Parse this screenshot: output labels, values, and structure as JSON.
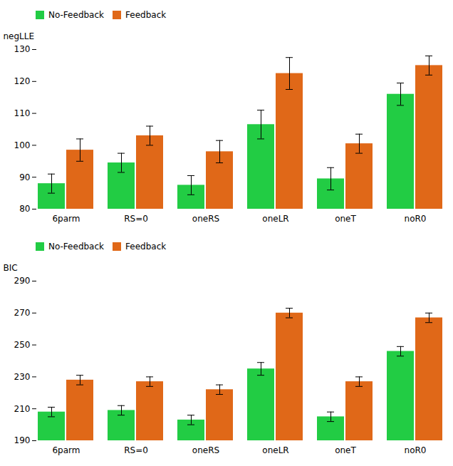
{
  "chart_data": [
    {
      "type": "bar",
      "ylabel": "negLLE",
      "categories": [
        "6parm",
        "RS=0",
        "oneRS",
        "oneLR",
        "oneT",
        "noR0"
      ],
      "series": [
        {
          "name": "No-Feedback",
          "color": "#22cc44",
          "values": [
            88,
            94.5,
            87.5,
            106.5,
            89.5,
            116
          ],
          "errors": [
            3,
            3,
            3,
            4.5,
            3.5,
            3.5
          ]
        },
        {
          "name": "Feedback",
          "color": "#e06818",
          "values": [
            98.5,
            103,
            98,
            122.5,
            100.5,
            125
          ],
          "errors": [
            3.5,
            3,
            3.5,
            5,
            3,
            3
          ]
        }
      ],
      "ylim": [
        80,
        130
      ],
      "yticks": [
        80,
        90,
        100,
        110,
        120,
        130
      ],
      "legend": "upper left",
      "grid": false
    },
    {
      "type": "bar",
      "ylabel": "BIC",
      "categories": [
        "6parm",
        "RS=0",
        "oneRS",
        "oneLR",
        "oneT",
        "noR0"
      ],
      "series": [
        {
          "name": "No-Feedback",
          "color": "#22cc44",
          "values": [
            208,
            209,
            203,
            235,
            205,
            246
          ],
          "errors": [
            3,
            3,
            3,
            4,
            3,
            3
          ]
        },
        {
          "name": "Feedback",
          "color": "#e06818",
          "values": [
            228,
            227,
            222,
            270,
            227,
            267
          ],
          "errors": [
            3,
            3,
            3,
            3,
            3,
            3
          ]
        }
      ],
      "ylim": [
        190,
        290
      ],
      "yticks": [
        190,
        210,
        230,
        250,
        270,
        290
      ],
      "legend": "upper left",
      "grid": false
    }
  ]
}
